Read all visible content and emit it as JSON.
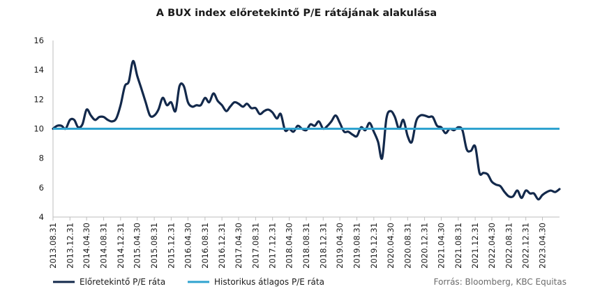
{
  "chart_data": {
    "type": "line",
    "title": "A BUX index előretekintő P/E rátájának alakulása",
    "xlabel": "",
    "ylabel": "",
    "ylim": [
      4,
      16
    ],
    "yticks": [
      4,
      6,
      8,
      10,
      12,
      14,
      16
    ],
    "xlim": [
      "2013-08-31",
      "2023-08-31"
    ],
    "grid": false,
    "legend": "bottom-left",
    "source": "Forrás: Bloomberg,  KBC Equitas",
    "x_tick_labels": [
      "2013.08.31",
      "2013.12.31",
      "2014.04.30",
      "2014.08.31",
      "2014.12.31",
      "2015.04.30",
      "2015.08.31",
      "2015.12.31",
      "2016.04.30",
      "2016.08.31",
      "2016.12.31",
      "2017.04.30",
      "2017.08.31",
      "2017.12.31",
      "2018.04.30",
      "2018.08.31",
      "2018.12.31",
      "2019.04.30",
      "2019.08.31",
      "2019.12.31",
      "2020.04.30",
      "2020.08.31",
      "2020.12.31",
      "2021.04.30",
      "2021.08.31",
      "2021.12.31",
      "2022.04.30",
      "2022.08.31",
      "2022.12.31",
      "2023.04.30"
    ],
    "x_tick_dates": [
      "2013-08-31",
      "2013-12-31",
      "2014-04-30",
      "2014-08-31",
      "2014-12-31",
      "2015-04-30",
      "2015-08-31",
      "2015-12-31",
      "2016-04-30",
      "2016-08-31",
      "2016-12-31",
      "2017-04-30",
      "2017-08-31",
      "2017-12-31",
      "2018-04-30",
      "2018-08-31",
      "2018-12-31",
      "2019-04-30",
      "2019-08-31",
      "2019-12-31",
      "2020-04-30",
      "2020-08-31",
      "2020-12-31",
      "2021-04-30",
      "2021-08-31",
      "2021-12-31",
      "2022-04-30",
      "2022-08-31",
      "2022-12-31",
      "2023-04-30"
    ],
    "series": [
      {
        "name": "Előretekintő P/E ráta",
        "color": "#13294b",
        "x": [
          "2013-08-31",
          "2013-09-30",
          "2013-10-31",
          "2013-11-30",
          "2013-12-31",
          "2014-01-31",
          "2014-02-28",
          "2014-03-31",
          "2014-04-30",
          "2014-05-31",
          "2014-06-30",
          "2014-07-31",
          "2014-08-31",
          "2014-09-30",
          "2014-10-31",
          "2014-11-30",
          "2014-12-31",
          "2015-01-31",
          "2015-02-28",
          "2015-03-31",
          "2015-04-30",
          "2015-05-31",
          "2015-06-30",
          "2015-07-31",
          "2015-08-31",
          "2015-09-30",
          "2015-10-31",
          "2015-11-30",
          "2015-12-31",
          "2016-01-31",
          "2016-02-29",
          "2016-03-31",
          "2016-04-30",
          "2016-05-31",
          "2016-06-30",
          "2016-07-31",
          "2016-08-31",
          "2016-09-30",
          "2016-10-31",
          "2016-11-30",
          "2016-12-31",
          "2017-01-31",
          "2017-02-28",
          "2017-03-31",
          "2017-04-30",
          "2017-05-31",
          "2017-06-30",
          "2017-07-31",
          "2017-08-31",
          "2017-09-30",
          "2017-10-31",
          "2017-11-30",
          "2017-12-31",
          "2018-01-31",
          "2018-02-28",
          "2018-03-31",
          "2018-04-30",
          "2018-05-31",
          "2018-06-30",
          "2018-07-31",
          "2018-08-31",
          "2018-09-30",
          "2018-10-31",
          "2018-11-30",
          "2018-12-31",
          "2019-01-31",
          "2019-02-28",
          "2019-03-31",
          "2019-04-30",
          "2019-05-31",
          "2019-06-30",
          "2019-07-31",
          "2019-08-31",
          "2019-09-30",
          "2019-10-31",
          "2019-11-30",
          "2019-12-31",
          "2020-01-31",
          "2020-02-29",
          "2020-03-31",
          "2020-04-30",
          "2020-05-31",
          "2020-06-30",
          "2020-07-31",
          "2020-08-31",
          "2020-09-30",
          "2020-10-31",
          "2020-11-30",
          "2020-12-31",
          "2021-01-31",
          "2021-02-28",
          "2021-03-31",
          "2021-04-30",
          "2021-05-31",
          "2021-06-30",
          "2021-07-31",
          "2021-08-31",
          "2021-09-30",
          "2021-10-31",
          "2021-11-30",
          "2021-12-31",
          "2022-01-31",
          "2022-02-28",
          "2022-03-31",
          "2022-04-30",
          "2022-05-31",
          "2022-06-30",
          "2022-07-31",
          "2022-08-31",
          "2022-09-30",
          "2022-10-31",
          "2022-11-30",
          "2022-12-31",
          "2023-01-31",
          "2023-02-28",
          "2023-03-31",
          "2023-04-30",
          "2023-05-31",
          "2023-06-30",
          "2023-07-31",
          "2023-08-31"
        ],
        "values": [
          10.0,
          10.2,
          10.2,
          10.0,
          10.6,
          10.6,
          10.1,
          10.3,
          11.3,
          10.9,
          10.6,
          10.8,
          10.8,
          10.6,
          10.5,
          10.7,
          11.6,
          12.9,
          13.2,
          14.6,
          13.6,
          12.7,
          11.8,
          10.9,
          10.9,
          11.3,
          12.1,
          11.6,
          11.8,
          11.2,
          12.9,
          12.9,
          11.8,
          11.5,
          11.6,
          11.6,
          12.1,
          11.8,
          12.4,
          11.9,
          11.6,
          11.2,
          11.5,
          11.8,
          11.7,
          11.5,
          11.7,
          11.4,
          11.4,
          11.0,
          11.2,
          11.3,
          11.1,
          10.7,
          11.0,
          9.9,
          10.0,
          9.8,
          10.2,
          10.0,
          9.9,
          10.3,
          10.2,
          10.5,
          10.0,
          10.2,
          10.5,
          10.9,
          10.4,
          9.8,
          9.8,
          9.6,
          9.5,
          10.1,
          9.9,
          10.4,
          9.8,
          9.1,
          8.0,
          10.7,
          11.2,
          10.8,
          10.0,
          10.6,
          9.5,
          9.1,
          10.5,
          10.9,
          10.9,
          10.8,
          10.8,
          10.2,
          10.1,
          9.7,
          10.0,
          9.9,
          10.1,
          9.9,
          8.6,
          8.5,
          8.8,
          7.0,
          7.0,
          6.9,
          6.4,
          6.2,
          6.1,
          5.7,
          5.4,
          5.4,
          5.8,
          5.3,
          5.8,
          5.6,
          5.6,
          5.2,
          5.5,
          5.7,
          5.8,
          5.7,
          5.9
        ]
      },
      {
        "name": "Historikus átlagos P/E ráta",
        "color": "#2fa3cf",
        "x": [
          "2013-08-31",
          "2023-08-31"
        ],
        "values": [
          10.0,
          10.0
        ]
      }
    ]
  }
}
